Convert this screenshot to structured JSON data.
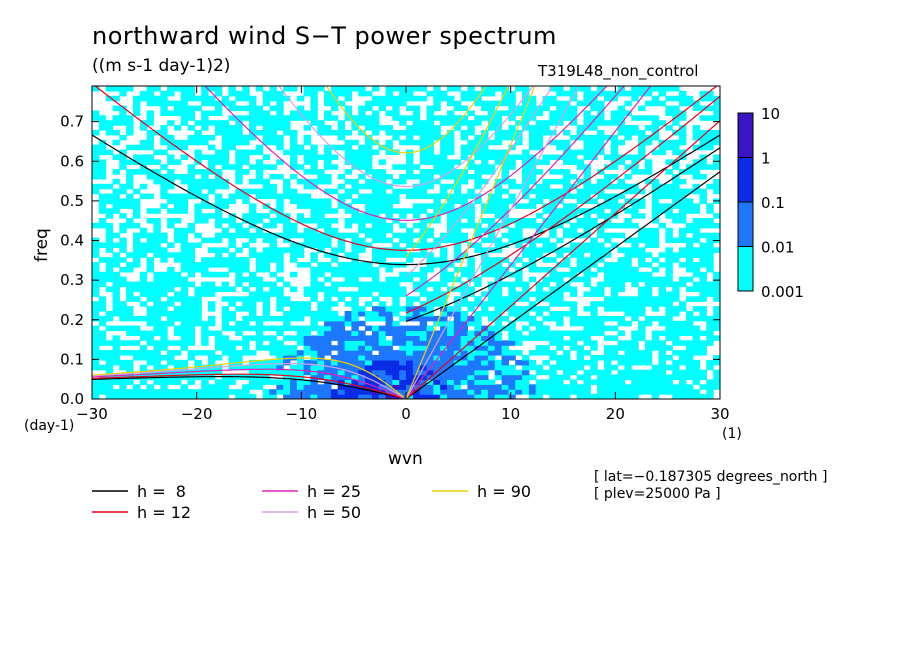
{
  "header": {
    "title": "northward wind S−T power spectrum",
    "units": "((m s-1 day-1)2)",
    "experiment": "T319L48_non_control"
  },
  "info": {
    "lat": "[ lat=−0.187305 degrees_north ]",
    "plev": "[ plev=25000 Pa ]"
  },
  "colors": {
    "h8": "#000000",
    "h12": "#e8001c",
    "h25": "#e020b8",
    "h50": "#d8a0e0",
    "h90": "#f0d000",
    "level_0001": "#00ffff",
    "level_001": "#1e78ff",
    "level_01": "#0a2ce6",
    "level_1": "#3c14c8"
  },
  "legend": [
    {
      "label": "h =  8",
      "color_key": "h8"
    },
    {
      "label": "h = 25",
      "color_key": "h25"
    },
    {
      "label": "h = 90",
      "color_key": "h90"
    },
    {
      "label": "h = 12",
      "color_key": "h12"
    },
    {
      "label": "h = 50",
      "color_key": "h50"
    }
  ],
  "chart_data": {
    "type": "heatmap",
    "title": "northward wind S−T power spectrum",
    "subtitle": "((m s-1 day-1)2)",
    "xlabel": "wvn",
    "ylabel": "freq",
    "x_unit": "(1)",
    "y_unit": "(day-1)",
    "xlim": [
      -30,
      30
    ],
    "ylim": [
      0,
      0.79
    ],
    "x_ticks": [
      -30,
      -20,
      -10,
      0,
      10,
      20,
      30
    ],
    "x_tick_labels": [
      "−30",
      "−20",
      "−10",
      "0",
      "10",
      "20",
      "30"
    ],
    "y_ticks": [
      0.0,
      0.1,
      0.2,
      0.3,
      0.4,
      0.5,
      0.6,
      0.7
    ],
    "y_tick_labels": [
      "0.0",
      "0.1",
      "0.2",
      "0.3",
      "0.4",
      "0.5",
      "0.6",
      "0.7"
    ],
    "colorbar": {
      "levels": [
        0.001,
        0.01,
        0.1,
        1,
        10
      ],
      "labels": [
        "0.001",
        "0.01",
        "0.1",
        "1",
        "10"
      ],
      "colors": [
        "#00ffff",
        "#1e78ff",
        "#0a2ce6",
        "#3c14c8"
      ]
    },
    "dispersion_curves": [
      {
        "name": "h =  8",
        "equivalent_depth_m": 8,
        "color": "#000000"
      },
      {
        "name": "h = 12",
        "equivalent_depth_m": 12,
        "color": "#e8001c"
      },
      {
        "name": "h = 25",
        "equivalent_depth_m": 25,
        "color": "#e020b8"
      },
      {
        "name": "h = 50",
        "equivalent_depth_m": 50,
        "color": "#d8a0e0"
      },
      {
        "name": "h = 90",
        "equivalent_depth_m": 90,
        "color": "#f0d000"
      }
    ],
    "power_regions": [
      {
        "level": "0.001-0.01",
        "x": [
          -30,
          30
        ],
        "y": [
          0,
          0.78
        ],
        "coverage": "scattered"
      },
      {
        "level": "0.01-0.1",
        "x": [
          -12,
          12
        ],
        "y": [
          0,
          0.25
        ],
        "coverage": "dense near origin"
      },
      {
        "level": "0.1-1",
        "x": [
          -6,
          3
        ],
        "y": [
          0,
          0.1
        ],
        "coverage": "patches"
      }
    ]
  }
}
